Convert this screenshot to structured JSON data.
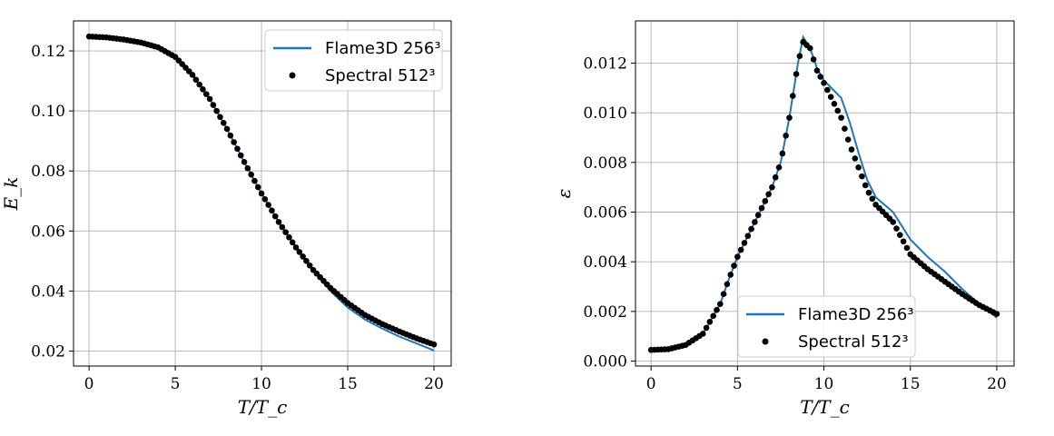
{
  "chart_data": [
    {
      "type": "line",
      "xlabel": "T/T_c",
      "ylabel": "E_k",
      "xlim": [
        -0.9,
        21.0
      ],
      "ylim": [
        0.015,
        0.13
      ],
      "xticks": [
        0,
        5,
        10,
        15,
        20
      ],
      "xtick_labels": [
        "0",
        "5",
        "10",
        "15",
        "20"
      ],
      "yticks": [
        0.02,
        0.04,
        0.06,
        0.08,
        0.1,
        0.12
      ],
      "ytick_labels": [
        "0.02",
        "0.04",
        "0.06",
        "0.08",
        "0.10",
        "0.12"
      ],
      "grid": true,
      "legend_position": "top-right",
      "series": [
        {
          "name": "Flame3D 256³",
          "style": "line",
          "color": "#1f77b4",
          "points": [
            [
              0,
              0.1248
            ],
            [
              1,
              0.1245
            ],
            [
              2,
              0.1238
            ],
            [
              3,
              0.1228
            ],
            [
              4,
              0.1212
            ],
            [
              5,
              0.118
            ],
            [
              6,
              0.112
            ],
            [
              7,
              0.104
            ],
            [
              8,
              0.094
            ],
            [
              9,
              0.083
            ],
            [
              10,
              0.0725
            ],
            [
              11,
              0.063
            ],
            [
              12,
              0.0545
            ],
            [
              13,
              0.047
            ],
            [
              14,
              0.04
            ],
            [
              15,
              0.0345
            ],
            [
              16,
              0.0305
            ],
            [
              17,
              0.0275
            ],
            [
              18,
              0.0248
            ],
            [
              19,
              0.0225
            ],
            [
              20,
              0.0202
            ]
          ]
        },
        {
          "name": "Spectral 512³",
          "style": "scatter",
          "color": "#000000",
          "points": [
            [
              0,
              0.1248
            ],
            [
              1,
              0.1245
            ],
            [
              2,
              0.1238
            ],
            [
              3,
              0.1228
            ],
            [
              4,
              0.1212
            ],
            [
              5,
              0.118
            ],
            [
              6,
              0.112
            ],
            [
              7,
              0.104
            ],
            [
              8,
              0.094
            ],
            [
              9,
              0.083
            ],
            [
              10,
              0.0725
            ],
            [
              11,
              0.063
            ],
            [
              12,
              0.0545
            ],
            [
              13,
              0.047
            ],
            [
              14,
              0.041
            ],
            [
              15,
              0.036
            ],
            [
              16,
              0.032
            ],
            [
              17,
              0.029
            ],
            [
              18,
              0.0265
            ],
            [
              19,
              0.0242
            ],
            [
              20,
              0.0222
            ]
          ]
        }
      ]
    },
    {
      "type": "line",
      "xlabel": "T/T_c",
      "ylabel": "ε",
      "xlim": [
        -0.9,
        21.0
      ],
      "ylim": [
        -0.0002,
        0.0137
      ],
      "xticks": [
        0,
        5,
        10,
        15,
        20
      ],
      "xtick_labels": [
        "0",
        "5",
        "10",
        "15",
        "20"
      ],
      "yticks": [
        0.0,
        0.002,
        0.004,
        0.006,
        0.008,
        0.01,
        0.012
      ],
      "ytick_labels": [
        "0.000",
        "0.002",
        "0.004",
        "0.006",
        "0.008",
        "0.010",
        "0.012"
      ],
      "grid": true,
      "legend_position": "bottom-center",
      "series": [
        {
          "name": "Flame3D 256³",
          "style": "line",
          "color": "#1f77b4",
          "points": [
            [
              0,
              0.00045
            ],
            [
              1,
              0.00048
            ],
            [
              2,
              0.00065
            ],
            [
              3,
              0.0011
            ],
            [
              4,
              0.0023
            ],
            [
              4.5,
              0.0033
            ],
            [
              5,
              0.0042
            ],
            [
              6,
              0.0056
            ],
            [
              7,
              0.007
            ],
            [
              7.5,
              0.008
            ],
            [
              8,
              0.0098
            ],
            [
              8.5,
              0.012
            ],
            [
              8.8,
              0.01305
            ],
            [
              9.2,
              0.0126
            ],
            [
              9.6,
              0.0118
            ],
            [
              10,
              0.0113
            ],
            [
              11,
              0.0106
            ],
            [
              11.5,
              0.0096
            ],
            [
              12,
              0.0084
            ],
            [
              12.5,
              0.0073
            ],
            [
              13,
              0.0066
            ],
            [
              14,
              0.006
            ],
            [
              15,
              0.0049
            ],
            [
              16,
              0.0042
            ],
            [
              17,
              0.0036
            ],
            [
              18,
              0.0029
            ],
            [
              19,
              0.0023
            ],
            [
              20,
              0.00175
            ]
          ]
        },
        {
          "name": "Spectral 512³",
          "style": "scatter",
          "color": "#000000",
          "points": [
            [
              0,
              0.00045
            ],
            [
              1,
              0.00048
            ],
            [
              2,
              0.00065
            ],
            [
              3,
              0.0011
            ],
            [
              4,
              0.0023
            ],
            [
              4.5,
              0.0033
            ],
            [
              5,
              0.0042
            ],
            [
              6,
              0.0056
            ],
            [
              7,
              0.007
            ],
            [
              7.5,
              0.008
            ],
            [
              8,
              0.0098
            ],
            [
              8.5,
              0.012
            ],
            [
              8.8,
              0.01285
            ],
            [
              9.2,
              0.0126
            ],
            [
              9.6,
              0.0117
            ],
            [
              10,
              0.0112
            ],
            [
              11,
              0.0098
            ],
            [
              11.5,
              0.0087
            ],
            [
              12,
              0.0078
            ],
            [
              12.5,
              0.0069
            ],
            [
              13,
              0.0063
            ],
            [
              14,
              0.0056
            ],
            [
              15,
              0.0043
            ],
            [
              16,
              0.0037
            ],
            [
              17,
              0.0032
            ],
            [
              18,
              0.0027
            ],
            [
              19,
              0.00225
            ],
            [
              20,
              0.0019
            ]
          ]
        }
      ]
    }
  ]
}
